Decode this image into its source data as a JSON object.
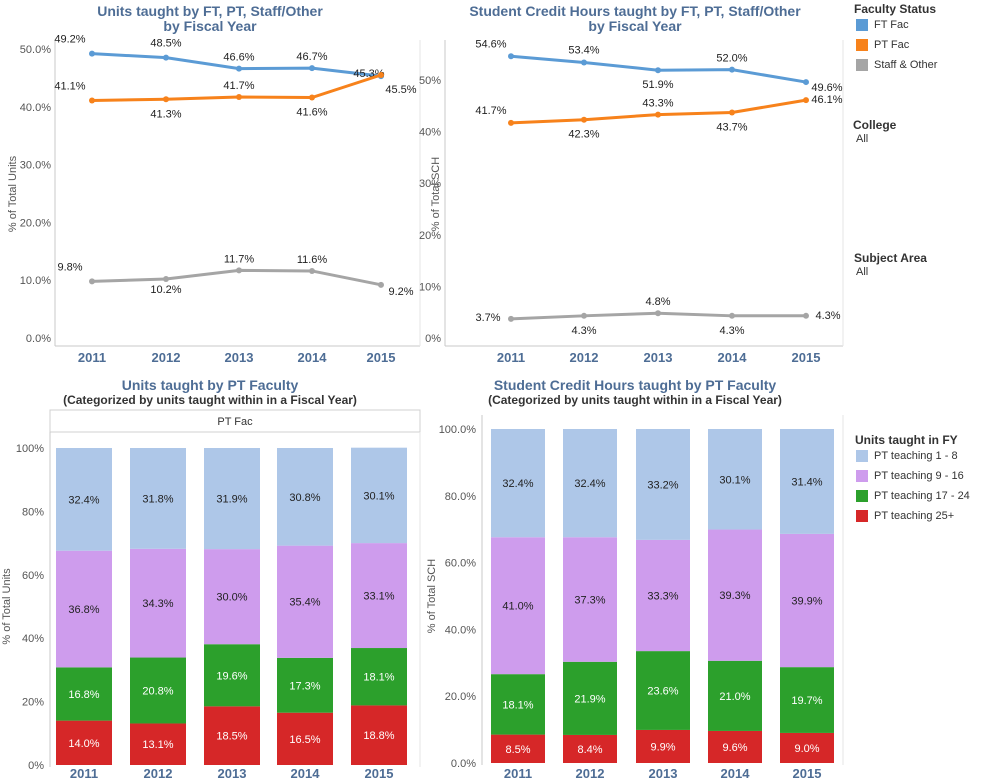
{
  "titles": {
    "units_line": "Units taught by FT, PT, Staff/Other",
    "units_line_sub": "by Fiscal Year",
    "sch_line": "Student Credit Hours taught by FT, PT, Staff/Other",
    "sch_line_sub": "by Fiscal Year",
    "units_bar": "Units taught by PT Faculty",
    "units_bar_sub": "(Categorized by units taught within in a Fiscal Year)",
    "sch_bar": "Student Credit Hours taught by PT Faculty",
    "sch_bar_sub": "(Categorized by units taught within in a Fiscal Year)"
  },
  "legend_faculty": {
    "title": "Faculty Status",
    "items": [
      {
        "label": "FT Fac",
        "color": "#5b9bd5"
      },
      {
        "label": "PT Fac",
        "color": "#f7821b"
      },
      {
        "label": "Staff & Other",
        "color": "#a5a5a5"
      }
    ]
  },
  "filters": {
    "college_label": "College",
    "college_value": "All",
    "subject_label": "Subject Area",
    "subject_value": "All"
  },
  "legend_units": {
    "title": "Units taught in FY",
    "items": [
      {
        "label": "PT teaching 1 - 8",
        "color": "#aec7e8"
      },
      {
        "label": "PT teaching 9 - 16",
        "color": "#ce9ced"
      },
      {
        "label": "PT teaching 17 - 24",
        "color": "#2ca02c"
      },
      {
        "label": "PT teaching 25+",
        "color": "#d62728"
      }
    ]
  },
  "chart_data": [
    {
      "type": "line",
      "title": "Units taught by FT, PT, Staff/Other by Fiscal Year",
      "ylabel": "% of Total Units",
      "x": [
        "2011",
        "2012",
        "2013",
        "2014",
        "2015"
      ],
      "ylim": [
        0,
        50
      ],
      "yticks": [
        "0.0%",
        "10.0%",
        "20.0%",
        "30.0%",
        "40.0%",
        "50.0%"
      ],
      "series": [
        {
          "name": "FT Fac",
          "color": "#5b9bd5",
          "values": [
            49.2,
            48.5,
            46.6,
            46.7,
            45.3
          ],
          "labels": [
            "49.2%",
            "48.5%",
            "46.6%",
            "46.7%",
            "45.3%"
          ]
        },
        {
          "name": "PT Fac",
          "color": "#f7821b",
          "values": [
            41.1,
            41.3,
            41.7,
            41.6,
            45.5
          ],
          "labels": [
            "41.1%",
            "41.3%",
            "41.7%",
            "41.6%",
            "45.5%"
          ]
        },
        {
          "name": "Staff & Other",
          "color": "#a5a5a5",
          "values": [
            9.8,
            10.2,
            11.7,
            11.6,
            9.2
          ],
          "labels": [
            "9.8%",
            "10.2%",
            "11.7%",
            "11.6%",
            "9.2%"
          ]
        }
      ]
    },
    {
      "type": "line",
      "title": "Student Credit Hours taught by FT, PT, Staff/Other by Fiscal Year",
      "ylabel": "% of Total SCH",
      "x": [
        "2011",
        "2012",
        "2013",
        "2014",
        "2015"
      ],
      "ylim": [
        0,
        55
      ],
      "yticks": [
        "0%",
        "10%",
        "20%",
        "30%",
        "40%",
        "50%"
      ],
      "series": [
        {
          "name": "FT Fac",
          "color": "#5b9bd5",
          "values": [
            54.6,
            53.4,
            51.9,
            52.0,
            49.6
          ],
          "labels": [
            "54.6%",
            "53.4%",
            "51.9%",
            "52.0%",
            "49.6%"
          ]
        },
        {
          "name": "PT Fac",
          "color": "#f7821b",
          "values": [
            41.7,
            42.3,
            43.3,
            43.7,
            46.1
          ],
          "labels": [
            "41.7%",
            "42.3%",
            "43.3%",
            "43.7%",
            "46.1%"
          ]
        },
        {
          "name": "Staff & Other",
          "color": "#a5a5a5",
          "values": [
            3.7,
            4.3,
            4.8,
            4.3,
            4.3
          ],
          "labels": [
            "3.7%",
            "4.3%",
            "4.8%",
            "4.3%",
            "4.3%"
          ]
        }
      ]
    },
    {
      "type": "bar",
      "stacked": true,
      "title": "Units taught by PT Faculty",
      "header": "PT Fac",
      "ylabel": "% of Total Units",
      "categories": [
        "2011",
        "2012",
        "2013",
        "2014",
        "2015"
      ],
      "ylim": [
        0,
        100
      ],
      "yticks": [
        "0%",
        "20%",
        "40%",
        "60%",
        "80%",
        "100%"
      ],
      "series": [
        {
          "name": "PT teaching 25+",
          "color": "#d62728",
          "values": [
            14.0,
            13.1,
            18.5,
            16.5,
            18.8
          ],
          "labels": [
            "14.0%",
            "13.1%",
            "18.5%",
            "16.5%",
            "18.8%"
          ]
        },
        {
          "name": "PT teaching 17 - 24",
          "color": "#2ca02c",
          "values": [
            16.8,
            20.8,
            19.6,
            17.3,
            18.1
          ],
          "labels": [
            "16.8%",
            "20.8%",
            "19.6%",
            "17.3%",
            "18.1%"
          ]
        },
        {
          "name": "PT teaching 9 - 16",
          "color": "#ce9ced",
          "values": [
            36.8,
            34.3,
            30.0,
            35.4,
            33.1
          ],
          "labels": [
            "36.8%",
            "34.3%",
            "30.0%",
            "35.4%",
            "33.1%"
          ]
        },
        {
          "name": "PT teaching 1 - 8",
          "color": "#aec7e8",
          "values": [
            32.4,
            31.8,
            31.9,
            30.8,
            30.1
          ],
          "labels": [
            "32.4%",
            "31.8%",
            "31.9%",
            "30.8%",
            "30.1%"
          ]
        }
      ]
    },
    {
      "type": "bar",
      "stacked": true,
      "title": "Student Credit Hours taught by PT Faculty",
      "ylabel": "% of Total SCH",
      "categories": [
        "2011",
        "2012",
        "2013",
        "2014",
        "2015"
      ],
      "ylim": [
        0,
        100
      ],
      "yticks": [
        "0.0%",
        "20.0%",
        "40.0%",
        "60.0%",
        "80.0%",
        "100.0%"
      ],
      "series": [
        {
          "name": "PT teaching 25+",
          "color": "#d62728",
          "values": [
            8.5,
            8.4,
            9.9,
            9.6,
            9.0
          ],
          "labels": [
            "8.5%",
            "8.4%",
            "9.9%",
            "9.6%",
            "9.0%"
          ]
        },
        {
          "name": "PT teaching 17 - 24",
          "color": "#2ca02c",
          "values": [
            18.1,
            21.9,
            23.6,
            21.0,
            19.7
          ],
          "labels": [
            "18.1%",
            "21.9%",
            "23.6%",
            "21.0%",
            "19.7%"
          ]
        },
        {
          "name": "PT teaching 9 - 16",
          "color": "#ce9ced",
          "values": [
            41.0,
            37.3,
            33.3,
            39.3,
            39.9
          ],
          "labels": [
            "41.0%",
            "37.3%",
            "33.3%",
            "39.3%",
            "39.9%"
          ]
        },
        {
          "name": "PT teaching 1 - 8",
          "color": "#aec7e8",
          "values": [
            32.4,
            32.4,
            33.2,
            30.1,
            31.4
          ],
          "labels": [
            "32.4%",
            "32.4%",
            "33.2%",
            "30.1%",
            "31.4%"
          ]
        }
      ]
    }
  ]
}
